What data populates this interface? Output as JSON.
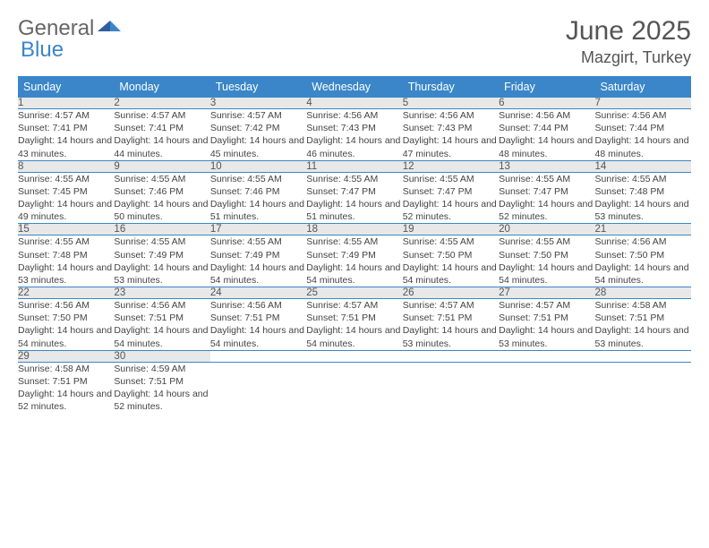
{
  "brand": {
    "part1": "General",
    "part2": "Blue"
  },
  "title": "June 2025",
  "location": "Mazgirt, Turkey",
  "weekdays": [
    "Sunday",
    "Monday",
    "Tuesday",
    "Wednesday",
    "Thursday",
    "Friday",
    "Saturday"
  ],
  "colors": {
    "header_bg": "#3a86c8",
    "header_text": "#ffffff",
    "daynum_bg": "#e8e8e8",
    "border": "#3a86c8",
    "brand_blue": "#3a86c8",
    "brand_gray": "#666666",
    "text": "#444444"
  },
  "weeks": [
    [
      {
        "n": "1",
        "sr": "4:57 AM",
        "ss": "7:41 PM",
        "dl": "14 hours and 43 minutes."
      },
      {
        "n": "2",
        "sr": "4:57 AM",
        "ss": "7:41 PM",
        "dl": "14 hours and 44 minutes."
      },
      {
        "n": "3",
        "sr": "4:57 AM",
        "ss": "7:42 PM",
        "dl": "14 hours and 45 minutes."
      },
      {
        "n": "4",
        "sr": "4:56 AM",
        "ss": "7:43 PM",
        "dl": "14 hours and 46 minutes."
      },
      {
        "n": "5",
        "sr": "4:56 AM",
        "ss": "7:43 PM",
        "dl": "14 hours and 47 minutes."
      },
      {
        "n": "6",
        "sr": "4:56 AM",
        "ss": "7:44 PM",
        "dl": "14 hours and 48 minutes."
      },
      {
        "n": "7",
        "sr": "4:56 AM",
        "ss": "7:44 PM",
        "dl": "14 hours and 48 minutes."
      }
    ],
    [
      {
        "n": "8",
        "sr": "4:55 AM",
        "ss": "7:45 PM",
        "dl": "14 hours and 49 minutes."
      },
      {
        "n": "9",
        "sr": "4:55 AM",
        "ss": "7:46 PM",
        "dl": "14 hours and 50 minutes."
      },
      {
        "n": "10",
        "sr": "4:55 AM",
        "ss": "7:46 PM",
        "dl": "14 hours and 51 minutes."
      },
      {
        "n": "11",
        "sr": "4:55 AM",
        "ss": "7:47 PM",
        "dl": "14 hours and 51 minutes."
      },
      {
        "n": "12",
        "sr": "4:55 AM",
        "ss": "7:47 PM",
        "dl": "14 hours and 52 minutes."
      },
      {
        "n": "13",
        "sr": "4:55 AM",
        "ss": "7:47 PM",
        "dl": "14 hours and 52 minutes."
      },
      {
        "n": "14",
        "sr": "4:55 AM",
        "ss": "7:48 PM",
        "dl": "14 hours and 53 minutes."
      }
    ],
    [
      {
        "n": "15",
        "sr": "4:55 AM",
        "ss": "7:48 PM",
        "dl": "14 hours and 53 minutes."
      },
      {
        "n": "16",
        "sr": "4:55 AM",
        "ss": "7:49 PM",
        "dl": "14 hours and 53 minutes."
      },
      {
        "n": "17",
        "sr": "4:55 AM",
        "ss": "7:49 PM",
        "dl": "14 hours and 54 minutes."
      },
      {
        "n": "18",
        "sr": "4:55 AM",
        "ss": "7:49 PM",
        "dl": "14 hours and 54 minutes."
      },
      {
        "n": "19",
        "sr": "4:55 AM",
        "ss": "7:50 PM",
        "dl": "14 hours and 54 minutes."
      },
      {
        "n": "20",
        "sr": "4:55 AM",
        "ss": "7:50 PM",
        "dl": "14 hours and 54 minutes."
      },
      {
        "n": "21",
        "sr": "4:56 AM",
        "ss": "7:50 PM",
        "dl": "14 hours and 54 minutes."
      }
    ],
    [
      {
        "n": "22",
        "sr": "4:56 AM",
        "ss": "7:50 PM",
        "dl": "14 hours and 54 minutes."
      },
      {
        "n": "23",
        "sr": "4:56 AM",
        "ss": "7:51 PM",
        "dl": "14 hours and 54 minutes."
      },
      {
        "n": "24",
        "sr": "4:56 AM",
        "ss": "7:51 PM",
        "dl": "14 hours and 54 minutes."
      },
      {
        "n": "25",
        "sr": "4:57 AM",
        "ss": "7:51 PM",
        "dl": "14 hours and 54 minutes."
      },
      {
        "n": "26",
        "sr": "4:57 AM",
        "ss": "7:51 PM",
        "dl": "14 hours and 53 minutes."
      },
      {
        "n": "27",
        "sr": "4:57 AM",
        "ss": "7:51 PM",
        "dl": "14 hours and 53 minutes."
      },
      {
        "n": "28",
        "sr": "4:58 AM",
        "ss": "7:51 PM",
        "dl": "14 hours and 53 minutes."
      }
    ],
    [
      {
        "n": "29",
        "sr": "4:58 AM",
        "ss": "7:51 PM",
        "dl": "14 hours and 52 minutes."
      },
      {
        "n": "30",
        "sr": "4:59 AM",
        "ss": "7:51 PM",
        "dl": "14 hours and 52 minutes."
      },
      null,
      null,
      null,
      null,
      null
    ]
  ],
  "labels": {
    "sunrise": "Sunrise:",
    "sunset": "Sunset:",
    "daylight": "Daylight:"
  }
}
